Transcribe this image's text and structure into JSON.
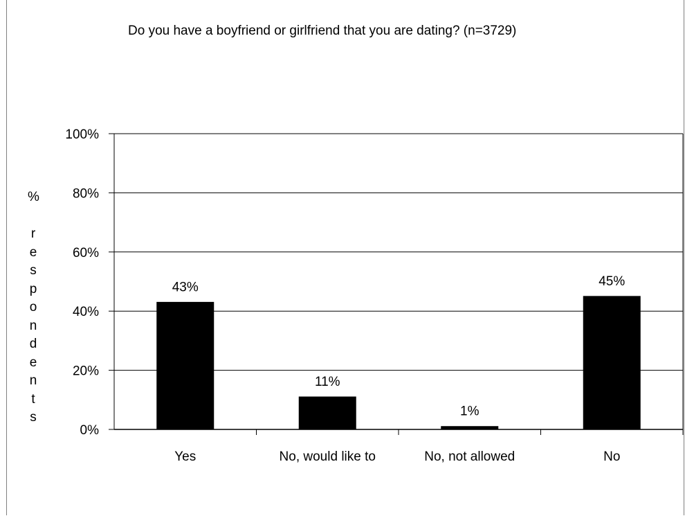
{
  "chart_data": {
    "type": "bar",
    "title": "Do you have a boyfriend or girlfriend that you are dating? (n=3729)",
    "xlabel": "",
    "ylabel": "% respondents",
    "categories": [
      "Yes",
      "No, would like to",
      "No, not allowed",
      "No"
    ],
    "values": [
      43,
      11,
      1,
      45
    ],
    "data_labels": [
      "43%",
      "11%",
      "1%",
      "45%"
    ],
    "ylim": [
      0,
      100
    ],
    "yticks": [
      0,
      20,
      40,
      60,
      80,
      100
    ],
    "ytick_labels": [
      "0%",
      "20%",
      "40%",
      "60%",
      "80%",
      "100%"
    ],
    "grid": true,
    "legend": "none",
    "bar_color": "#000000"
  }
}
